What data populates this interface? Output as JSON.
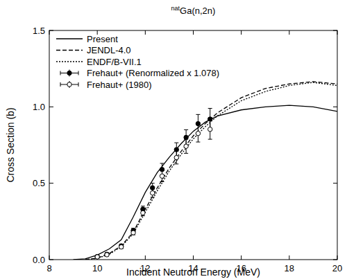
{
  "chart_data": {
    "type": "line",
    "title": "natGa(n,2n)",
    "x_label": "Incident Neutron Energy (MeV)",
    "y_label": "Cross Section (b)",
    "xlim": [
      8,
      20
    ],
    "xticks": [
      8,
      10,
      12,
      14,
      16,
      18,
      20
    ],
    "ylim": [
      0,
      1.5
    ],
    "yticks": [
      {
        "value": 0,
        "label": "0.0"
      },
      {
        "value": 0.5,
        "label": "0.5"
      },
      {
        "value": 1.0,
        "label": "1.0"
      },
      {
        "value": 1.5,
        "label": "1.5"
      }
    ],
    "grid": false,
    "legend": "top-left",
    "series": [
      {
        "name": "Present",
        "type": "line",
        "color": "#000000",
        "line_style": "solid",
        "x": [
          9.0,
          9.5,
          10.0,
          10.5,
          11.0,
          11.5,
          12.0,
          12.5,
          13.0,
          13.5,
          14.0,
          14.5,
          15.0,
          16.0,
          17.0,
          18.0,
          19.0,
          20.0
        ],
        "values": [
          0.0,
          0.005,
          0.03,
          0.07,
          0.13,
          0.28,
          0.44,
          0.57,
          0.67,
          0.76,
          0.84,
          0.9,
          0.94,
          0.98,
          1.0,
          1.01,
          1.0,
          0.97
        ]
      },
      {
        "name": "JENDL-4.0",
        "type": "line",
        "color": "#000000",
        "line_style": "dashed",
        "x": [
          9.5,
          10.0,
          10.5,
          11.0,
          11.5,
          12.0,
          12.5,
          13.0,
          13.5,
          14.0,
          14.5,
          15.0,
          16.0,
          17.0,
          18.0,
          19.0,
          20.0
        ],
        "values": [
          0.0,
          0.01,
          0.04,
          0.09,
          0.18,
          0.33,
          0.47,
          0.6,
          0.71,
          0.81,
          0.89,
          0.96,
          1.06,
          1.12,
          1.15,
          1.165,
          1.15
        ]
      },
      {
        "name": "ENDF/B-VII.1",
        "type": "line",
        "color": "#000000",
        "line_style": "dotted",
        "x": [
          9.5,
          10.0,
          10.5,
          11.0,
          11.5,
          12.0,
          12.5,
          13.0,
          13.5,
          14.0,
          14.5,
          15.0,
          16.0,
          17.0,
          18.0,
          19.0,
          20.0
        ],
        "values": [
          0.0,
          0.008,
          0.035,
          0.085,
          0.17,
          0.31,
          0.45,
          0.58,
          0.69,
          0.79,
          0.87,
          0.94,
          1.04,
          1.1,
          1.14,
          1.16,
          1.14
        ]
      },
      {
        "name": "Frehaut+ (Renormalized x 1.078)",
        "type": "scatter",
        "color": "#000000",
        "marker": "filled-circle",
        "line_style": "none",
        "x": [
          10.0,
          10.4,
          11.0,
          11.5,
          11.9,
          12.3,
          12.7,
          13.3,
          13.7,
          14.2,
          14.7
        ],
        "values": [
          0.02,
          0.035,
          0.09,
          0.19,
          0.33,
          0.47,
          0.59,
          0.72,
          0.8,
          0.89,
          0.92
        ],
        "errors": [
          0.01,
          0.01,
          0.012,
          0.015,
          0.02,
          0.03,
          0.04,
          0.045,
          0.05,
          0.06,
          0.07
        ]
      },
      {
        "name": "Frehaut+ (1980)",
        "type": "scatter",
        "color": "#000000",
        "marker": "open-circle",
        "line_style": "none",
        "x": [
          10.0,
          10.4,
          11.0,
          11.5,
          11.9,
          12.3,
          12.7,
          13.3,
          13.7,
          14.2,
          14.7
        ],
        "values": [
          0.018,
          0.032,
          0.083,
          0.176,
          0.306,
          0.436,
          0.547,
          0.668,
          0.742,
          0.826,
          0.853
        ],
        "errors": [
          0.009,
          0.009,
          0.011,
          0.014,
          0.019,
          0.028,
          0.037,
          0.042,
          0.046,
          0.056,
          0.065
        ]
      }
    ]
  }
}
